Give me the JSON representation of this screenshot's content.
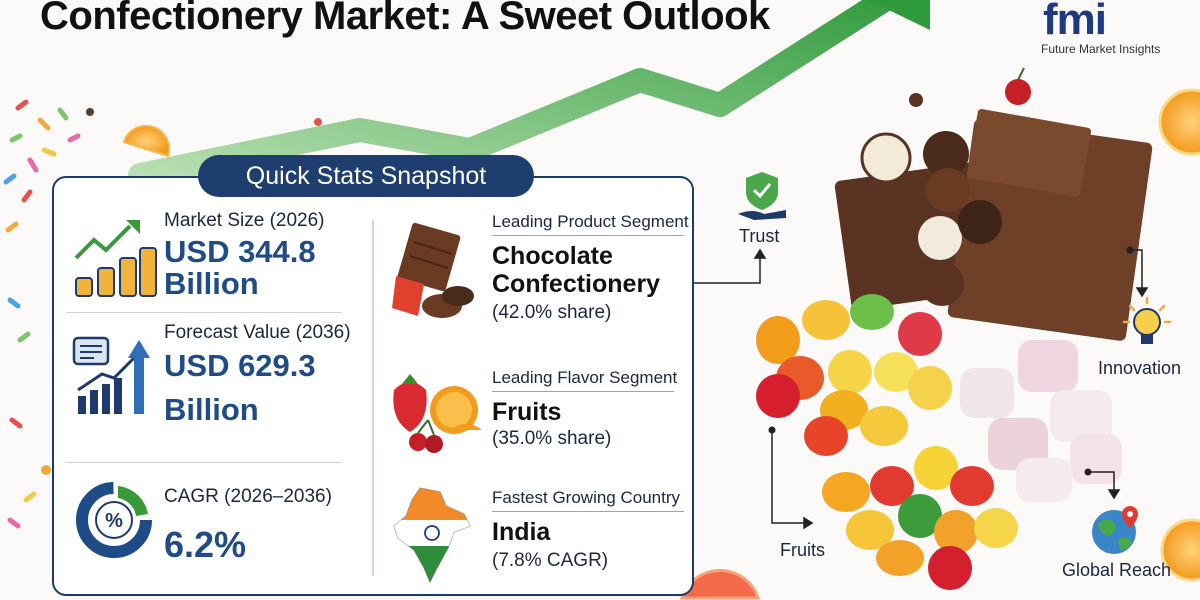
{
  "title": "Confectionery Market: A Sweet Outlook",
  "logo": {
    "mark": "fmi",
    "name": "Future Market Insights"
  },
  "snapshot": {
    "heading": "Quick Stats Snapshot",
    "stats": [
      {
        "label": "Market Size (2026)",
        "value_line1": "USD 344.8",
        "value_line2": "Billion",
        "icon": "growth-coins-icon"
      },
      {
        "label": "Forecast Value (2036)",
        "value_line1": "USD 629.3",
        "value_line2": "Billion",
        "icon": "forecast-chart-icon"
      },
      {
        "label": "CAGR (2026–2036)",
        "value_line1": "6.2%",
        "icon": "percent-donut-icon"
      }
    ],
    "segments": [
      {
        "label": "Leading Product Segment",
        "name_line1": "Chocolate",
        "name_line2": "Confectionery",
        "share": "(42.0% share)",
        "icon": "chocolate-icon"
      },
      {
        "label": "Leading Flavor Segment",
        "name_line1": "Fruits",
        "share": "(35.0% share)",
        "icon": "fruits-icon"
      },
      {
        "label": "Fastest Growing Country",
        "name_line1": "India",
        "share": "(7.8% CAGR)",
        "icon": "india-map-icon"
      }
    ]
  },
  "features": [
    {
      "label": "Trust",
      "icon": "trust-hand-shield-icon"
    },
    {
      "label": "Innovation",
      "icon": "lightbulb-icon"
    },
    {
      "label": "Fruits",
      "icon": ""
    },
    {
      "label": "Global Reach",
      "icon": "globe-icon"
    }
  ],
  "colors": {
    "accent_navy": "#1e3e6f",
    "value_blue": "#1f4c88",
    "arrow_green": "#4aa84a"
  }
}
